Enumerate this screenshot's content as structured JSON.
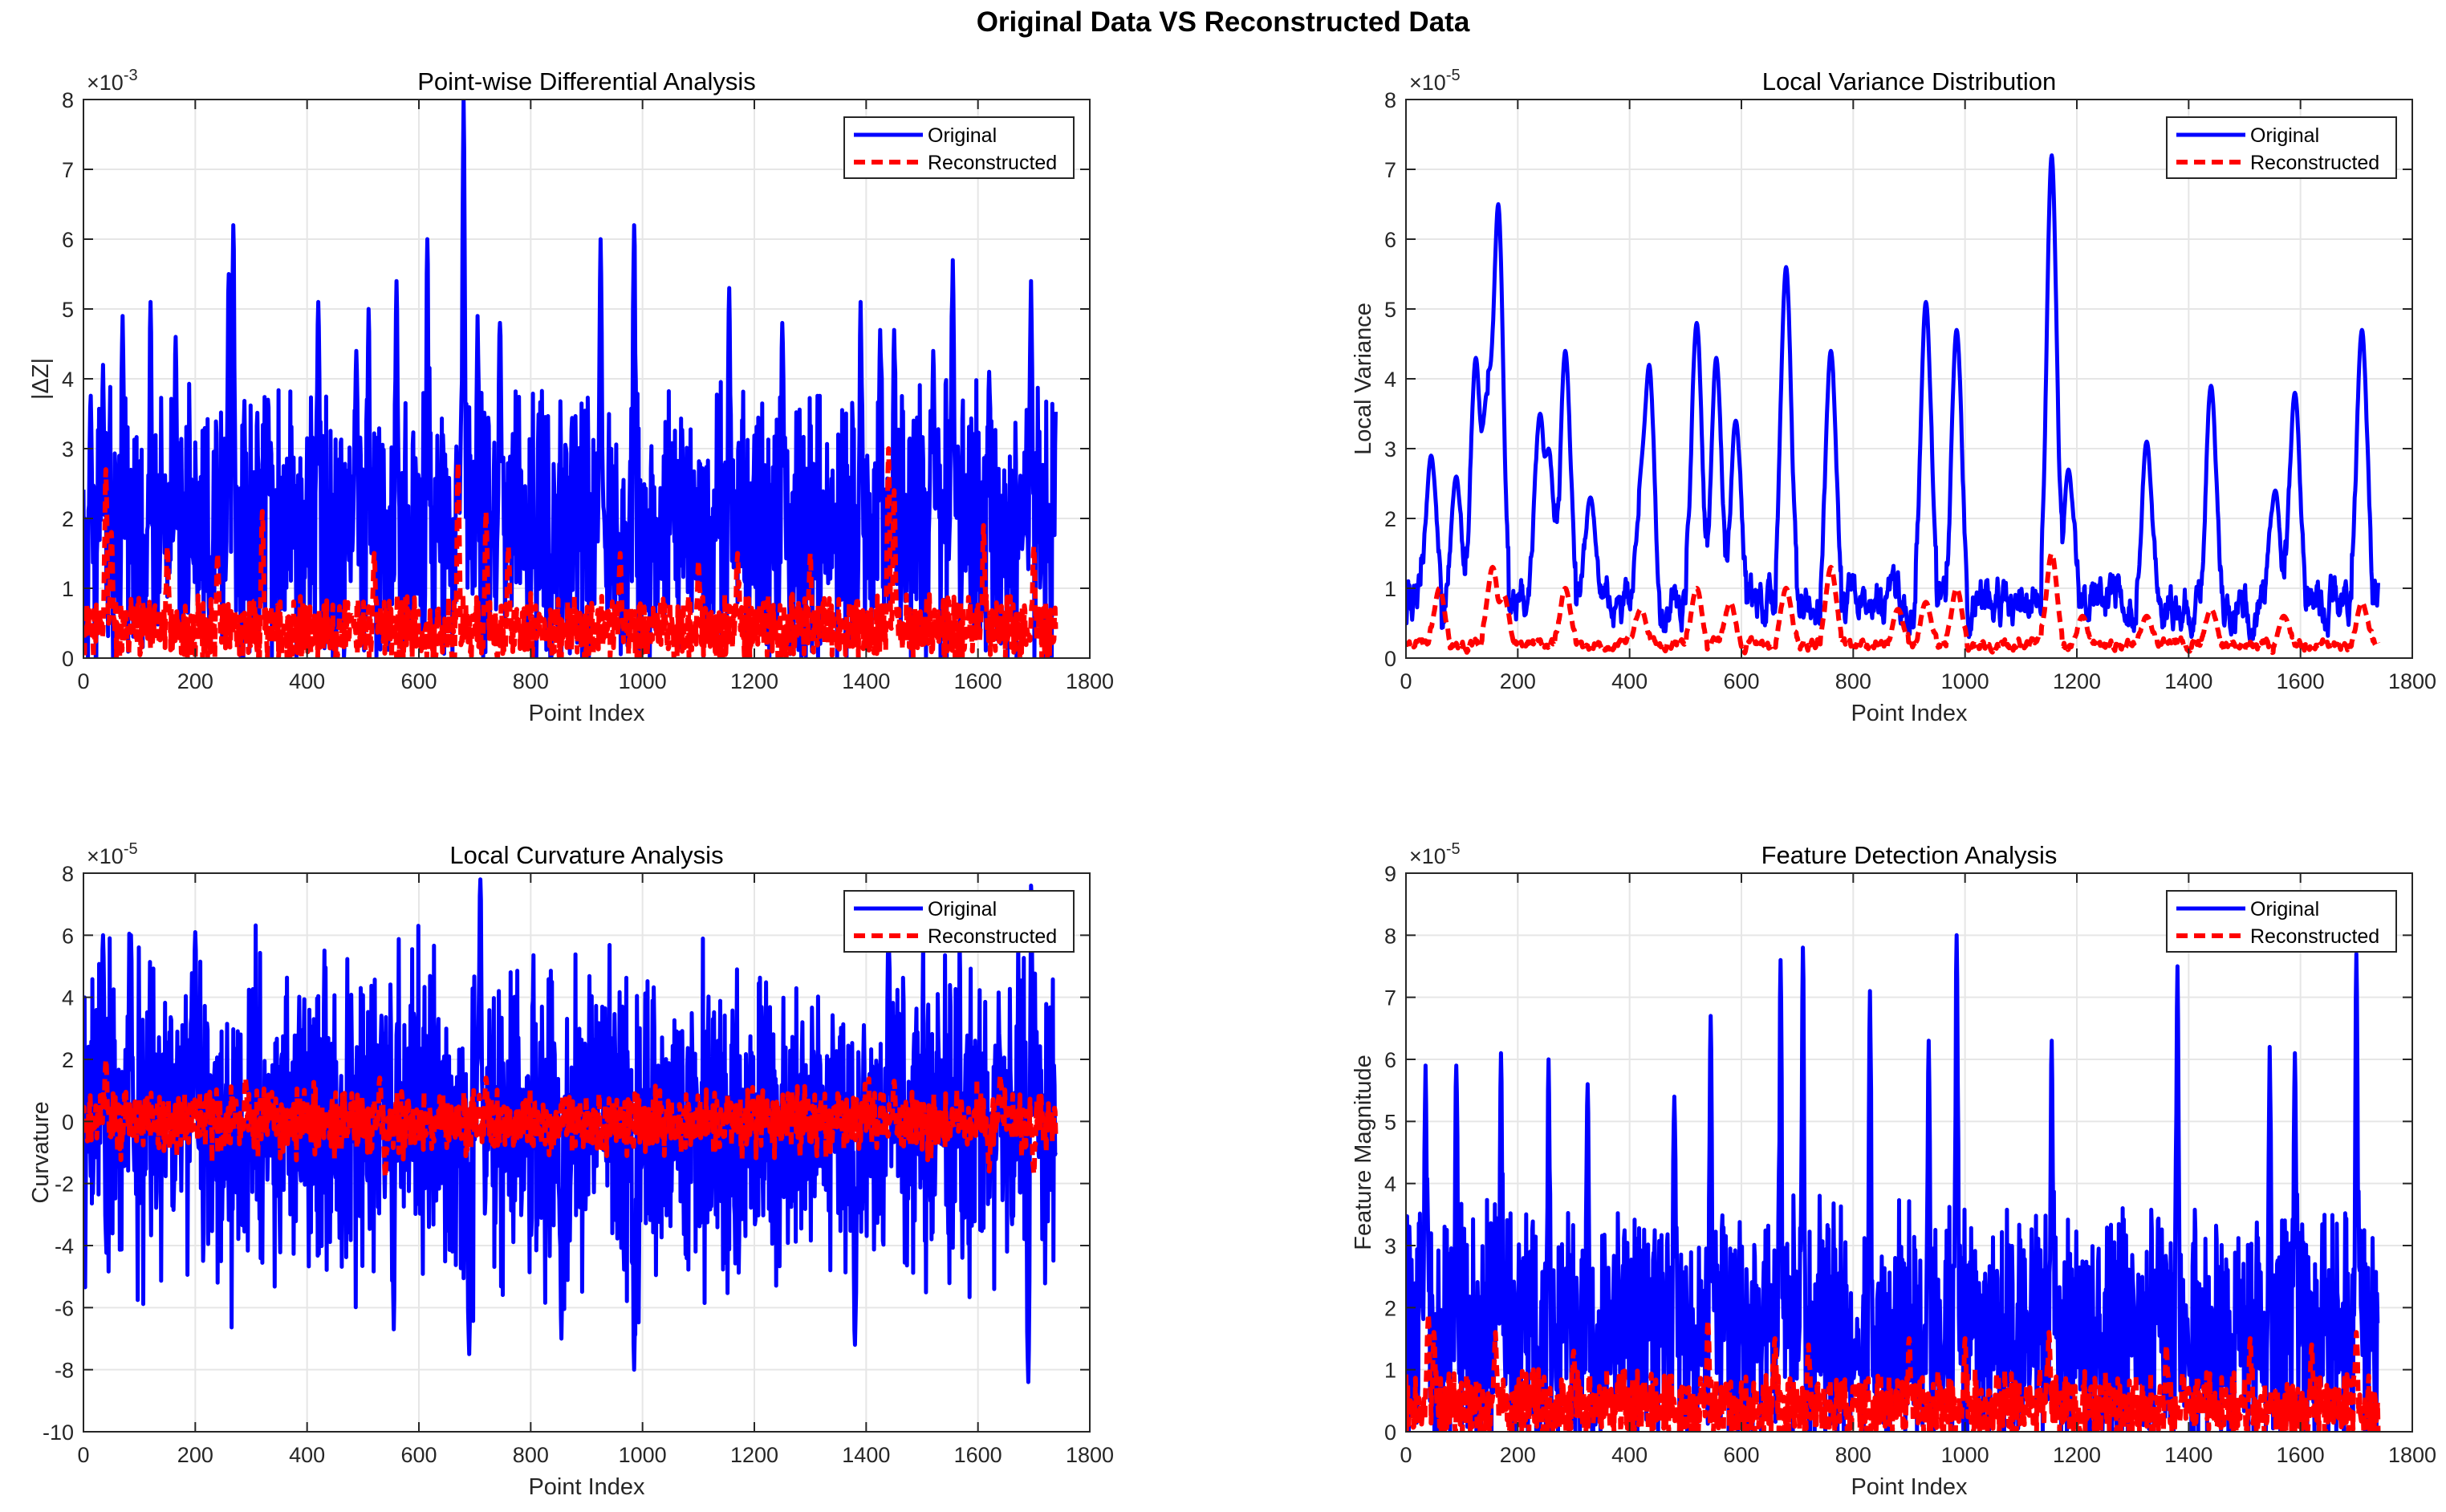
{
  "figure": {
    "title": "Original Data VS Reconstructed Data"
  },
  "colors": {
    "original": "#0000ff",
    "reconstructed": "#ff0000",
    "grid": "#e6e6e6",
    "axis": "#262626"
  },
  "chart_data": [
    {
      "id": "tl",
      "type": "line",
      "title": "Point-wise Differential Analysis",
      "xlabel": "Point Index",
      "ylabel": "|ΔZ|",
      "xlim": [
        0,
        1800
      ],
      "ylim": [
        0,
        8
      ],
      "xticks": [
        0,
        200,
        400,
        600,
        800,
        1000,
        1200,
        1400,
        1600,
        1800
      ],
      "yticks": [
        0,
        1,
        2,
        3,
        4,
        5,
        6,
        7,
        8
      ],
      "exponent": "-3",
      "grid": true,
      "legend_location": "top-right",
      "series": [
        {
          "name": "Original",
          "style": "solid",
          "n_points": 1740,
          "baseline": 1.8,
          "spread": 1.3,
          "floor": 0.0,
          "cap": 8.0,
          "noise": "jagged",
          "peaks": [
            [
              13,
              3.5
            ],
            [
              35,
              4.2
            ],
            [
              70,
              4.9
            ],
            [
              120,
              5.1
            ],
            [
              165,
              4.6
            ],
            [
              260,
              5.5
            ],
            [
              268,
              6.2
            ],
            [
              330,
              3.7
            ],
            [
              420,
              5.1
            ],
            [
              488,
              4.4
            ],
            [
              510,
              5.0
            ],
            [
              560,
              5.4
            ],
            [
              615,
              6.0
            ],
            [
              680,
              8.0
            ],
            [
              705,
              4.9
            ],
            [
              745,
              4.8
            ],
            [
              925,
              6.0
            ],
            [
              985,
              6.2
            ],
            [
              1155,
              5.3
            ],
            [
              1250,
              4.8
            ],
            [
              1390,
              5.1
            ],
            [
              1425,
              4.7
            ],
            [
              1450,
              4.7
            ],
            [
              1520,
              4.4
            ],
            [
              1555,
              5.7
            ],
            [
              1620,
              4.1
            ],
            [
              1695,
              5.4
            ]
          ]
        },
        {
          "name": "Reconstructed",
          "style": "dashed",
          "n_points": 1740,
          "baseline": 0.4,
          "spread": 0.3,
          "floor": 0.0,
          "cap": 4.0,
          "noise": "jagged",
          "peaks": [
            [
              40,
              2.7
            ],
            [
              50,
              1.8
            ],
            [
              150,
              1.6
            ],
            [
              240,
              1.5
            ],
            [
              320,
              2.1
            ],
            [
              520,
              1.5
            ],
            [
              670,
              2.8
            ],
            [
              720,
              2.1
            ],
            [
              760,
              1.6
            ],
            [
              960,
              1.5
            ],
            [
              1100,
              1.4
            ],
            [
              1170,
              1.5
            ],
            [
              1300,
              1.5
            ],
            [
              1440,
              3.0
            ],
            [
              1450,
              2.4
            ],
            [
              1610,
              1.9
            ],
            [
              1700,
              1.6
            ]
          ]
        }
      ]
    },
    {
      "id": "tr",
      "type": "line",
      "title": "Local Variance Distribution",
      "xlabel": "Point Index",
      "ylabel": "Local Variance",
      "xlim": [
        0,
        1800
      ],
      "ylim": [
        0,
        8
      ],
      "xticks": [
        0,
        200,
        400,
        600,
        800,
        1000,
        1200,
        1400,
        1600,
        1800
      ],
      "yticks": [
        0,
        1,
        2,
        3,
        4,
        5,
        6,
        7,
        8
      ],
      "exponent": "-5",
      "grid": true,
      "legend_location": "top-right",
      "series": [
        {
          "name": "Original",
          "style": "solid",
          "n_points": 1740,
          "baseline": 0.8,
          "spread": 0.7,
          "floor": 0.2,
          "cap": 8.0,
          "noise": "smooth",
          "peaks": [
            [
              45,
              2.9
            ],
            [
              90,
              2.6
            ],
            [
              125,
              4.3
            ],
            [
              145,
              3.8
            ],
            [
              165,
              6.5
            ],
            [
              240,
              3.5
            ],
            [
              255,
              3.0
            ],
            [
              285,
              4.4
            ],
            [
              330,
              2.3
            ],
            [
              420,
              2.2
            ],
            [
              435,
              4.2
            ],
            [
              520,
              4.8
            ],
            [
              555,
              4.3
            ],
            [
              590,
              3.4
            ],
            [
              680,
              5.6
            ],
            [
              760,
              4.4
            ],
            [
              930,
              5.1
            ],
            [
              985,
              4.7
            ],
            [
              1155,
              7.2
            ],
            [
              1185,
              2.7
            ],
            [
              1325,
              3.1
            ],
            [
              1440,
              3.9
            ],
            [
              1555,
              2.4
            ],
            [
              1590,
              3.8
            ],
            [
              1710,
              4.7
            ]
          ]
        },
        {
          "name": "Reconstructed",
          "style": "dashed",
          "n_points": 1740,
          "baseline": 0.2,
          "spread": 0.15,
          "floor": 0.0,
          "cap": 2.0,
          "noise": "smooth",
          "peaks": [
            [
              60,
              1.0
            ],
            [
              155,
              1.3
            ],
            [
              175,
              0.9
            ],
            [
              285,
              1.0
            ],
            [
              420,
              0.7
            ],
            [
              520,
              1.0
            ],
            [
              580,
              0.8
            ],
            [
              680,
              1.0
            ],
            [
              760,
              1.3
            ],
            [
              880,
              0.7
            ],
            [
              930,
              0.8
            ],
            [
              985,
              1.0
            ],
            [
              1155,
              1.5
            ],
            [
              1210,
              0.6
            ],
            [
              1325,
              0.6
            ],
            [
              1440,
              0.7
            ],
            [
              1570,
              0.6
            ],
            [
              1710,
              0.8
            ]
          ]
        }
      ]
    },
    {
      "id": "bl",
      "type": "line",
      "title": "Local Curvature Analysis",
      "xlabel": "Point Index",
      "ylabel": "Curvature",
      "xlim": [
        0,
        1800
      ],
      "ylim": [
        -10,
        8
      ],
      "xticks": [
        0,
        200,
        400,
        600,
        800,
        1000,
        1200,
        1400,
        1600,
        1800
      ],
      "yticks": [
        -10,
        -8,
        -6,
        -4,
        -2,
        0,
        2,
        4,
        6,
        8
      ],
      "exponent": "-5",
      "grid": true,
      "legend_location": "top-right",
      "series": [
        {
          "name": "Original",
          "style": "solid",
          "n_points": 1740,
          "baseline": 0.0,
          "spread": 3.4,
          "floor": -10,
          "cap": 8,
          "noise": "signed",
          "peaks": [
            [
              35,
              6.0
            ],
            [
              85,
              6.0
            ],
            [
              200,
              6.1
            ],
            [
              710,
              7.8
            ],
            [
              1440,
              6.6
            ],
            [
              1695,
              7.6
            ],
            [
              555,
              -6.7
            ],
            [
              690,
              -7.5
            ],
            [
              855,
              -7.0
            ],
            [
              985,
              -8.0
            ],
            [
              1380,
              -7.2
            ],
            [
              1690,
              -8.4
            ]
          ]
        },
        {
          "name": "Reconstructed",
          "style": "dashed",
          "n_points": 1740,
          "baseline": 0.0,
          "spread": 0.7,
          "floor": -3,
          "cap": 3,
          "noise": "signed",
          "peaks": [
            [
              40,
              2.0
            ],
            [
              290,
              1.4
            ],
            [
              530,
              1.4
            ],
            [
              720,
              1.4
            ],
            [
              1450,
              1.3
            ],
            [
              1640,
              1.5
            ],
            [
              540,
              -1.8
            ],
            [
              1620,
              -1.6
            ],
            [
              1700,
              -1.7
            ]
          ]
        }
      ]
    },
    {
      "id": "br",
      "type": "line",
      "title": "Feature Detection Analysis",
      "xlabel": "Point Index",
      "ylabel": "Feature Magnitude",
      "xlim": [
        0,
        1800
      ],
      "ylim": [
        0,
        9
      ],
      "xticks": [
        0,
        200,
        400,
        600,
        800,
        1000,
        1200,
        1400,
        1600,
        1800
      ],
      "yticks": [
        0,
        1,
        2,
        3,
        4,
        5,
        6,
        7,
        8,
        9
      ],
      "exponent": "-5",
      "grid": true,
      "legend_location": "top-right",
      "series": [
        {
          "name": "Original",
          "style": "solid",
          "n_points": 1740,
          "baseline": 1.6,
          "spread": 1.3,
          "floor": 0.0,
          "cap": 9.0,
          "noise": "jagged",
          "peaks": [
            [
              35,
              5.9
            ],
            [
              90,
              5.9
            ],
            [
              170,
              6.1
            ],
            [
              255,
              6.0
            ],
            [
              325,
              5.6
            ],
            [
              480,
              5.4
            ],
            [
              545,
              6.7
            ],
            [
              670,
              7.6
            ],
            [
              710,
              7.8
            ],
            [
              830,
              7.1
            ],
            [
              935,
              6.3
            ],
            [
              985,
              8.0
            ],
            [
              1155,
              6.3
            ],
            [
              1380,
              7.5
            ],
            [
              1545,
              6.2
            ],
            [
              1590,
              6.1
            ],
            [
              1700,
              7.7
            ]
          ]
        },
        {
          "name": "Reconstructed",
          "style": "dashed",
          "n_points": 1740,
          "baseline": 0.4,
          "spread": 0.35,
          "floor": 0.0,
          "cap": 3.0,
          "noise": "jagged",
          "peaks": [
            [
              40,
              1.9
            ],
            [
              50,
              1.6
            ],
            [
              160,
              1.6
            ],
            [
              300,
              1.3
            ],
            [
              540,
              1.8
            ],
            [
              660,
              1.5
            ],
            [
              720,
              1.4
            ],
            [
              900,
              1.5
            ],
            [
              1000,
              1.5
            ],
            [
              1150,
              1.6
            ],
            [
              1360,
              1.4
            ],
            [
              1510,
              1.5
            ],
            [
              1620,
              1.4
            ],
            [
              1700,
              1.6
            ]
          ]
        }
      ]
    }
  ]
}
